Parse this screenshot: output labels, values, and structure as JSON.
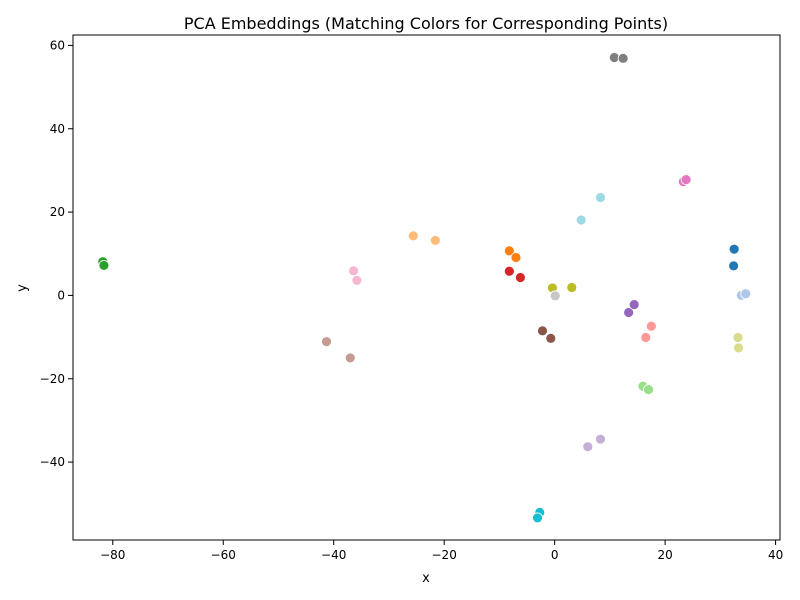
{
  "chart_data": {
    "type": "scatter",
    "title": "PCA Embeddings (Matching Colors for Corresponding Points)",
    "xlabel": "x",
    "ylabel": "y",
    "xlim": [
      -87.2,
      40.8
    ],
    "ylim": [
      -58.7,
      62.5
    ],
    "grid": false,
    "legend": "none",
    "x_ticks": [
      -80,
      -60,
      -40,
      -20,
      0,
      20,
      40
    ],
    "y_ticks": [
      -40,
      -20,
      0,
      20,
      40,
      60
    ],
    "x_tick_labels": [
      "−80",
      "−60",
      "−40",
      "−20",
      "0",
      "20",
      "40"
    ],
    "y_tick_labels": [
      "−40",
      "−20",
      "0",
      "20",
      "40",
      "60"
    ],
    "points": [
      {
        "x": -81.8,
        "y": 8.1,
        "color": "#2ca02c"
      },
      {
        "x": -81.6,
        "y": 7.2,
        "color": "#2ca02c"
      },
      {
        "x": -41.3,
        "y": -11.1,
        "color": "#c49c94"
      },
      {
        "x": -37.0,
        "y": -15.0,
        "color": "#c49c94"
      },
      {
        "x": -36.4,
        "y": 5.9,
        "color": "#f7b6d2"
      },
      {
        "x": -35.8,
        "y": 3.6,
        "color": "#f7b6d2"
      },
      {
        "x": -25.6,
        "y": 14.3,
        "color": "#ffbb78"
      },
      {
        "x": -21.6,
        "y": 13.2,
        "color": "#ffbb78"
      },
      {
        "x": -8.2,
        "y": 10.7,
        "color": "#ff7f0e"
      },
      {
        "x": -7.0,
        "y": 9.1,
        "color": "#ff7f0e"
      },
      {
        "x": -8.2,
        "y": 5.8,
        "color": "#d62728"
      },
      {
        "x": -6.2,
        "y": 4.3,
        "color": "#d62728"
      },
      {
        "x": -0.4,
        "y": 1.8,
        "color": "#bcbd22"
      },
      {
        "x": 3.1,
        "y": 1.9,
        "color": "#bcbd22"
      },
      {
        "x": 0.1,
        "y": -0.1,
        "color": "#c7c7c7"
      },
      {
        "x": -2.2,
        "y": -8.5,
        "color": "#8c564b"
      },
      {
        "x": -0.7,
        "y": -10.3,
        "color": "#8c564b"
      },
      {
        "x": -2.7,
        "y": -52.1,
        "color": "#17becf"
      },
      {
        "x": -3.1,
        "y": -53.4,
        "color": "#17becf"
      },
      {
        "x": 4.8,
        "y": 18.1,
        "color": "#9edae5"
      },
      {
        "x": 8.3,
        "y": 23.5,
        "color": "#9edae5"
      },
      {
        "x": 10.8,
        "y": 57.1,
        "color": "#7f7f7f"
      },
      {
        "x": 12.4,
        "y": 56.9,
        "color": "#7f7f7f"
      },
      {
        "x": 6.0,
        "y": -36.3,
        "color": "#c5b0d5"
      },
      {
        "x": 8.3,
        "y": -34.5,
        "color": "#c5b0d5"
      },
      {
        "x": 13.4,
        "y": -4.1,
        "color": "#9467bd"
      },
      {
        "x": 14.4,
        "y": -2.2,
        "color": "#9467bd"
      },
      {
        "x": 16.5,
        "y": -10.1,
        "color": "#ff9896"
      },
      {
        "x": 17.5,
        "y": -7.4,
        "color": "#ff9896"
      },
      {
        "x": 16.0,
        "y": -21.8,
        "color": "#98df8a"
      },
      {
        "x": 17.0,
        "y": -22.6,
        "color": "#98df8a"
      },
      {
        "x": 23.3,
        "y": 27.3,
        "color": "#e377c2"
      },
      {
        "x": 23.8,
        "y": 27.8,
        "color": "#e377c2"
      },
      {
        "x": 32.5,
        "y": 11.1,
        "color": "#1f77b4"
      },
      {
        "x": 32.4,
        "y": 7.1,
        "color": "#1f77b4"
      },
      {
        "x": 33.2,
        "y": -10.1,
        "color": "#dbdb8d"
      },
      {
        "x": 33.3,
        "y": -12.6,
        "color": "#dbdb8d"
      },
      {
        "x": 33.8,
        "y": 0.0,
        "color": "#aec7e8"
      },
      {
        "x": 34.6,
        "y": 0.4,
        "color": "#aec7e8"
      }
    ]
  }
}
